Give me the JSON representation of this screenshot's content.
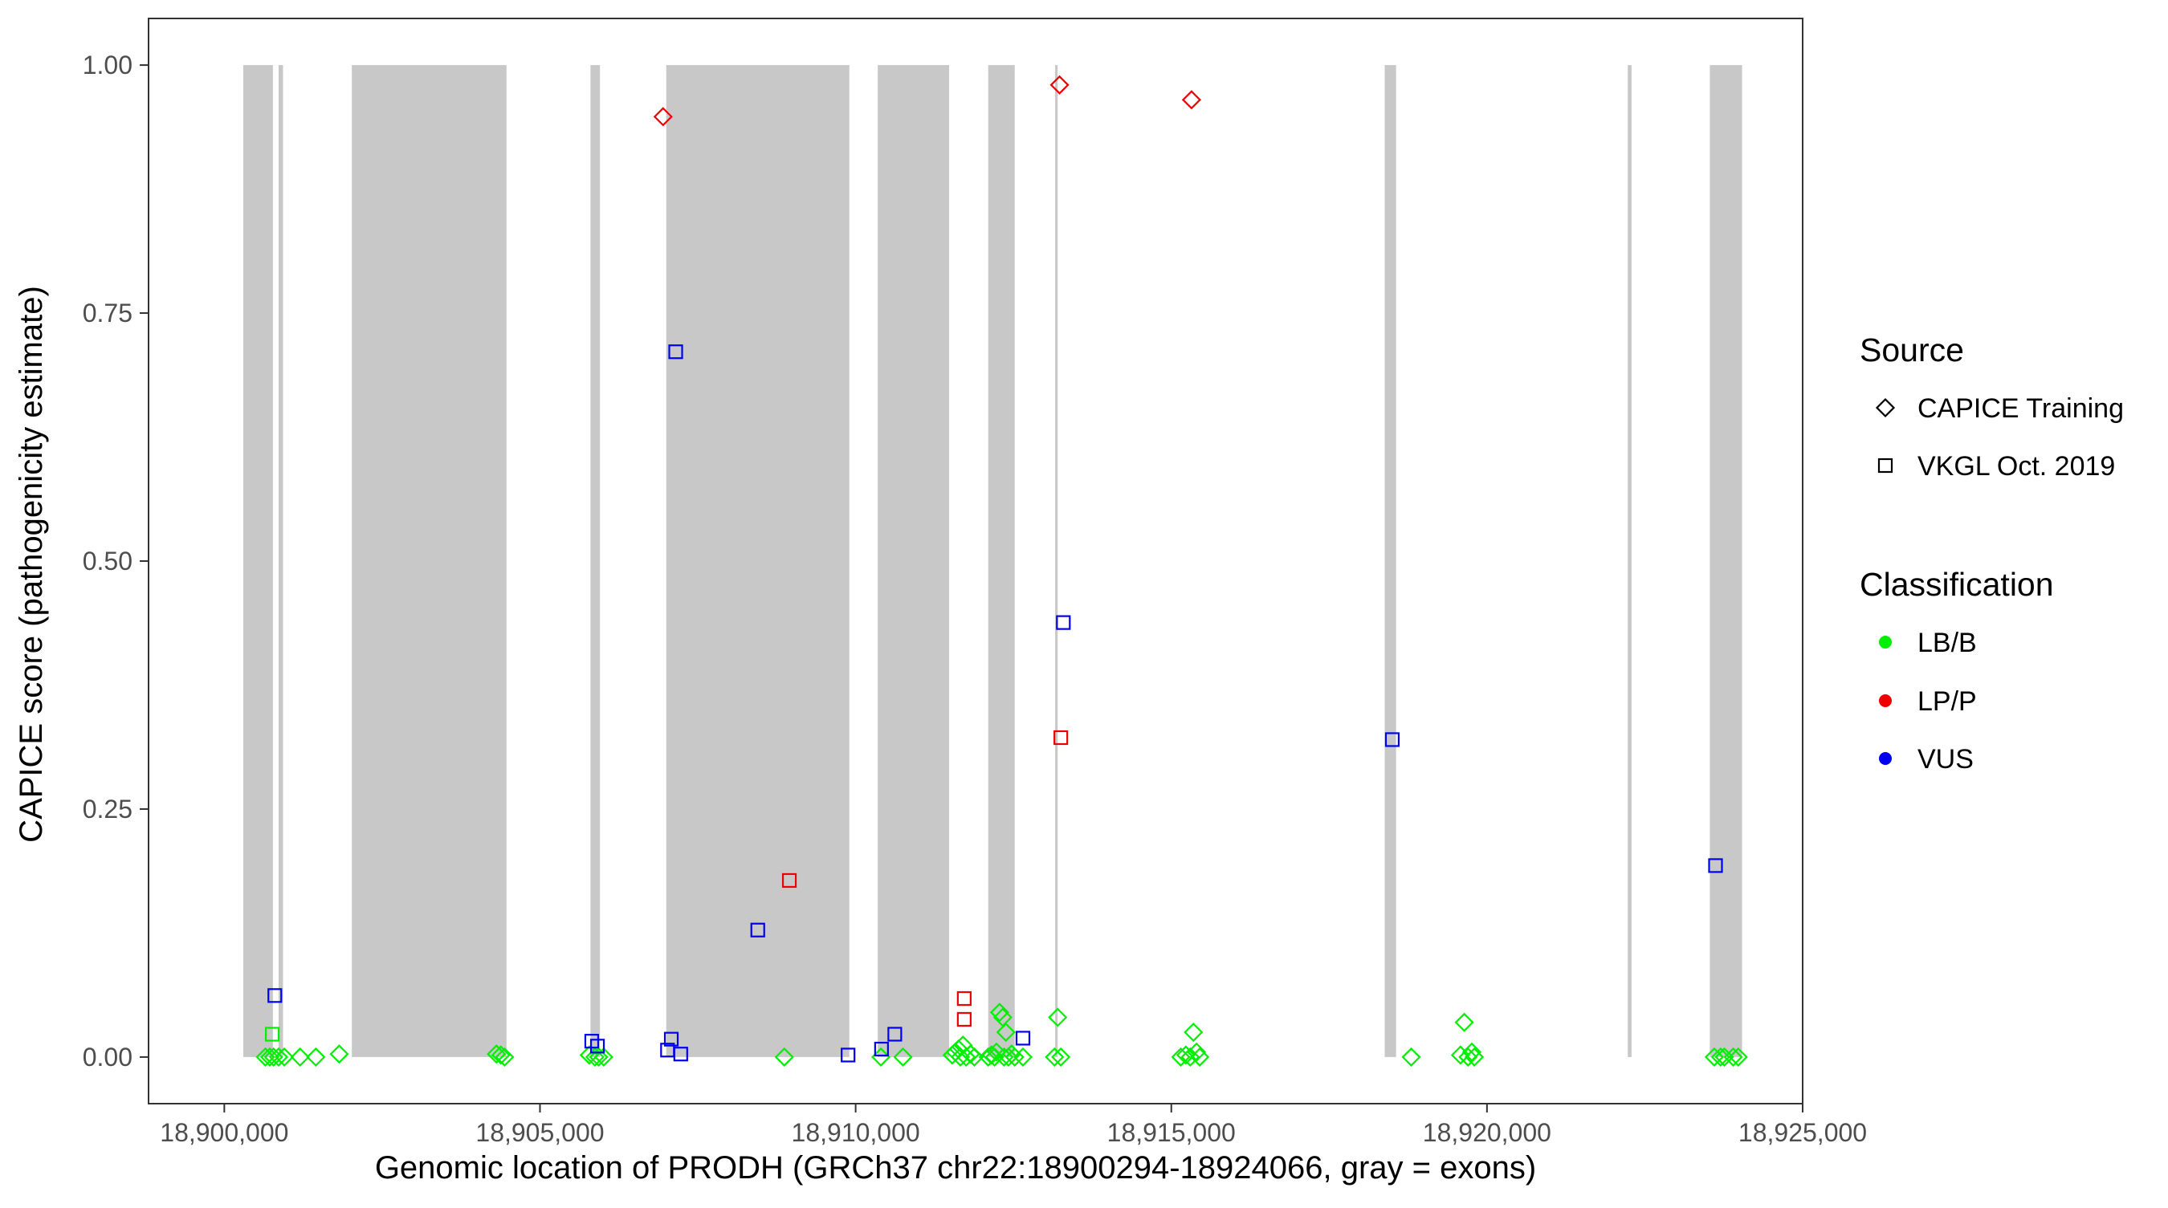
{
  "chart_data": {
    "type": "scatter",
    "xlabel": "Genomic location of PRODH (GRCh37 chr22:18900294-18924066, gray = exons)",
    "ylabel": "CAPICE score (pathogenicity estimate)",
    "xlim": [
      18898800,
      18925000
    ],
    "ylim": [
      -0.047,
      1.047
    ],
    "x_ticks": [
      18900000,
      18905000,
      18910000,
      18915000,
      18920000,
      18925000
    ],
    "x_tick_labels": [
      "18,900,000",
      "18,905,000",
      "18,910,000",
      "18,915,000",
      "18,920,000",
      "18,925,000"
    ],
    "y_ticks": [
      0,
      0.25,
      0.5,
      0.75,
      1.0
    ],
    "y_tick_labels": [
      "0.00",
      "0.25",
      "0.50",
      "0.75",
      "1.00"
    ],
    "grid": false,
    "exon_color": "#c8c8c8",
    "exons": [
      [
        18900300,
        18900770
      ],
      [
        18900860,
        18900930
      ],
      [
        18902020,
        18904470
      ],
      [
        18905800,
        18905950
      ],
      [
        18907000,
        18909900
      ],
      [
        18910350,
        18911480
      ],
      [
        18912100,
        18912520
      ],
      [
        18913160,
        18913200
      ],
      [
        18918380,
        18918560
      ],
      [
        18922230,
        18922290
      ],
      [
        18923530,
        18924040
      ]
    ],
    "legend": {
      "placement": "right",
      "source_title": "Source",
      "source_items": [
        {
          "label": "CAPICE Training",
          "shape": "diamond"
        },
        {
          "label": "VKGL Oct. 2019",
          "shape": "square"
        }
      ],
      "class_title": "Classification",
      "class_items": [
        {
          "label": "LB/B",
          "color": "#00ee00"
        },
        {
          "label": "LP/P",
          "color": "#ee0000"
        },
        {
          "label": "VUS",
          "color": "#0000ee"
        }
      ]
    },
    "series": [
      {
        "source": "CAPICE Training",
        "shape": "diamond",
        "classification": "LB/B",
        "points": [
          [
            18900650,
            0.0
          ],
          [
            18900720,
            0.0
          ],
          [
            18900780,
            0.0
          ],
          [
            18900860,
            0.0
          ],
          [
            18900950,
            0.0
          ],
          [
            18901200,
            0.0
          ],
          [
            18901450,
            0.0
          ],
          [
            18901820,
            0.003
          ],
          [
            18904310,
            0.003
          ],
          [
            18904380,
            0.002
          ],
          [
            18904440,
            0.0
          ],
          [
            18905780,
            0.002
          ],
          [
            18905870,
            0.0
          ],
          [
            18905930,
            0.0
          ],
          [
            18906010,
            0.0
          ],
          [
            18908870,
            0.0
          ],
          [
            18910400,
            0.0
          ],
          [
            18910750,
            0.0
          ],
          [
            18911530,
            0.002
          ],
          [
            18911580,
            0.005
          ],
          [
            18911630,
            0.008
          ],
          [
            18911660,
            0.0
          ],
          [
            18911700,
            0.012
          ],
          [
            18911750,
            0.0
          ],
          [
            18911820,
            0.003
          ],
          [
            18911880,
            0.0
          ],
          [
            18912100,
            0.0
          ],
          [
            18912150,
            0.002
          ],
          [
            18912200,
            0.0
          ],
          [
            18912230,
            0.005
          ],
          [
            18912280,
            0.045
          ],
          [
            18912330,
            0.04
          ],
          [
            18912350,
            0.0
          ],
          [
            18912380,
            0.025
          ],
          [
            18912420,
            0.0
          ],
          [
            18912470,
            0.003
          ],
          [
            18912520,
            0.0
          ],
          [
            18912650,
            0.0
          ],
          [
            18913150,
            0.0
          ],
          [
            18913200,
            0.04
          ],
          [
            18913250,
            0.0
          ],
          [
            18915150,
            0.0
          ],
          [
            18915230,
            0.002
          ],
          [
            18915300,
            0.0
          ],
          [
            18915350,
            0.025
          ],
          [
            18915400,
            0.005
          ],
          [
            18915450,
            0.0
          ],
          [
            18918800,
            0.0
          ],
          [
            18919580,
            0.002
          ],
          [
            18919640,
            0.035
          ],
          [
            18919700,
            0.0
          ],
          [
            18919760,
            0.005
          ],
          [
            18919800,
            0.0
          ],
          [
            18923600,
            0.0
          ],
          [
            18923700,
            0.0
          ],
          [
            18923760,
            0.0
          ],
          [
            18923900,
            0.0
          ],
          [
            18923980,
            0.0
          ]
        ]
      },
      {
        "source": "CAPICE Training",
        "shape": "diamond",
        "classification": "LP/P",
        "points": [
          [
            18906950,
            0.948
          ],
          [
            18913230,
            0.98
          ],
          [
            18915320,
            0.965
          ]
        ]
      },
      {
        "source": "VKGL Oct. 2019",
        "shape": "square",
        "classification": "LB/B",
        "points": [
          [
            18900760,
            0.023
          ]
        ]
      },
      {
        "source": "VKGL Oct. 2019",
        "shape": "square",
        "classification": "LP/P",
        "points": [
          [
            18908950,
            0.178
          ],
          [
            18911720,
            0.059
          ],
          [
            18911720,
            0.038
          ],
          [
            18913250,
            0.322
          ]
        ]
      },
      {
        "source": "VKGL Oct. 2019",
        "shape": "square",
        "classification": "VUS",
        "points": [
          [
            18900800,
            0.062
          ],
          [
            18905820,
            0.016
          ],
          [
            18905910,
            0.011
          ],
          [
            18907020,
            0.007
          ],
          [
            18907080,
            0.018
          ],
          [
            18907150,
            0.711
          ],
          [
            18907230,
            0.003
          ],
          [
            18908450,
            0.128
          ],
          [
            18909880,
            0.002
          ],
          [
            18910410,
            0.008
          ],
          [
            18910620,
            0.023
          ],
          [
            18912650,
            0.019
          ],
          [
            18913290,
            0.438
          ],
          [
            18918500,
            0.32
          ],
          [
            18923620,
            0.193
          ]
        ]
      }
    ]
  }
}
